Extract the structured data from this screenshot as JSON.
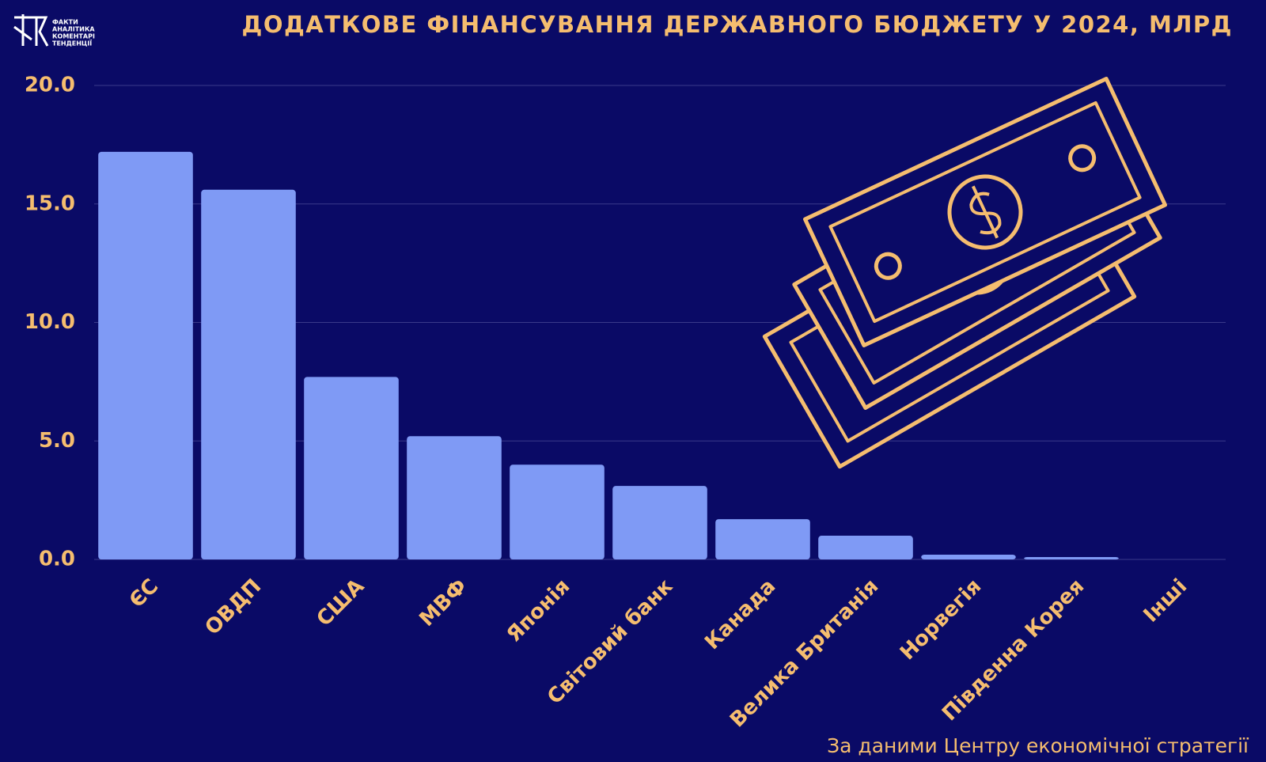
{
  "logo": {
    "lines": [
      "ФАКТИ",
      "АНАЛІТИКА",
      "КОМЕНТАРІ",
      "ТЕНДЕНЦІЇ"
    ]
  },
  "chart_data": {
    "type": "bar",
    "title": "ДОДАТКОВЕ ФІНАНСУВАННЯ ДЕРЖАВНОГО БЮДЖЕТУ У 2024, МЛРД",
    "categories": [
      "ЄС",
      "ОВДП",
      "США",
      "МВФ",
      "Японія",
      "Світовий банк",
      "Канада",
      "Велика Британія",
      "Норвегія",
      "Південна Корея",
      "Інші"
    ],
    "values": [
      17.2,
      15.6,
      7.7,
      5.2,
      4.0,
      3.1,
      1.7,
      1.0,
      0.2,
      0.1,
      0
    ],
    "color": "#7f9af5",
    "ylim": [
      0,
      20
    ],
    "yticks": [
      {
        "value": 0,
        "label": "0.0"
      },
      {
        "value": 5,
        "label": "5.0"
      },
      {
        "value": 10,
        "label": "10.0"
      },
      {
        "value": 15,
        "label": "15.0"
      },
      {
        "value": 20,
        "label": "20.0"
      }
    ],
    "grid": true,
    "source": "За даними  Центру економічної стратегії"
  }
}
